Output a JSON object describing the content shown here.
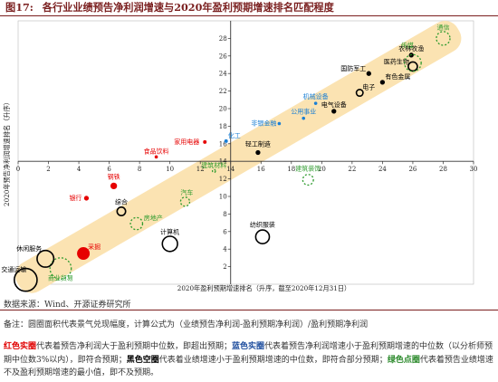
{
  "figure": {
    "title_prefix": "图17:",
    "title": "各行业业绩预告净利润增速与2020年盈利预期增速排名匹配程度"
  },
  "chart_data": {
    "type": "scatter",
    "xlabel": "2020年盈利预期增速排名（升序，截至2020年12月31日）",
    "ylabel": "2020年预告净利润增速排名（升序）",
    "xlim": [
      0,
      30
    ],
    "ylim": [
      0,
      30
    ],
    "x_ticks": [
      0,
      2,
      4,
      6,
      8,
      10,
      12,
      14,
      16,
      18,
      20,
      22,
      24,
      26,
      28,
      30
    ],
    "y_ticks": [
      2,
      4,
      6,
      8,
      10,
      12,
      14,
      16,
      18,
      20,
      22,
      24,
      26,
      28
    ],
    "axis_origin": [
      14,
      14
    ],
    "grid": false,
    "band": {
      "from": [
        0,
        0
      ],
      "to": [
        29,
        29
      ],
      "color": "#fbe3b2"
    },
    "colors": {
      "red": "#e60000",
      "blue": "#1a7fd4",
      "black": "#000000",
      "green": "#2e9b2e"
    },
    "points": [
      {
        "label": "交通运输",
        "x": 0.5,
        "y": 0.5,
        "r": 0.75,
        "kind": "black_hollow"
      },
      {
        "label": "商业贸易",
        "x": 2.8,
        "y": 1.8,
        "r": 0.7,
        "kind": "green_dashed"
      },
      {
        "label": "休闲服务",
        "x": 1.8,
        "y": 2.9,
        "r": 0.55,
        "kind": "black_hollow"
      },
      {
        "label": "采掘",
        "x": 4.3,
        "y": 3.5,
        "r": 0.4,
        "kind": "red_solid"
      },
      {
        "label": "计算机",
        "x": 10,
        "y": 4.6,
        "r": 0.5,
        "kind": "black_hollow"
      },
      {
        "label": "纺织服装",
        "x": 16.1,
        "y": 5.4,
        "r": 0.45,
        "kind": "black_hollow"
      },
      {
        "label": "房地产",
        "x": 7.8,
        "y": 6.9,
        "r": 0.4,
        "kind": "green_dashed"
      },
      {
        "label": "综合",
        "x": 6.8,
        "y": 8.3,
        "r": 0.28,
        "kind": "black_hollow"
      },
      {
        "label": "银行",
        "x": 4.5,
        "y": 9.8,
        "r": 0.14,
        "kind": "red_solid"
      },
      {
        "label": "钢铁",
        "x": 6.3,
        "y": 11.2,
        "r": 0.2,
        "kind": "red_solid"
      },
      {
        "label": "汽车",
        "x": 11,
        "y": 9.4,
        "r": 0.3,
        "kind": "green_dashed"
      },
      {
        "label": "建筑装饰",
        "x": 19.1,
        "y": 11.9,
        "r": 0.35,
        "kind": "green_dashed"
      },
      {
        "label": "食品饮料",
        "x": 9.1,
        "y": 14.5,
        "r": 0.08,
        "kind": "red_solid"
      },
      {
        "label": "建筑材料",
        "x": 12.9,
        "y": 12.9,
        "r": 0.1,
        "kind": "green_dashed"
      },
      {
        "label": "家用电器",
        "x": 12.3,
        "y": 16.2,
        "r": 0.1,
        "kind": "red_solid"
      },
      {
        "label": "化工",
        "x": 13.7,
        "y": 16.3,
        "r": 0.1,
        "kind": "blue_solid"
      },
      {
        "label": "轻工制造",
        "x": 15.8,
        "y": 15.0,
        "r": 0.14,
        "kind": "black_solid"
      },
      {
        "label": "非银金融",
        "x": 17.2,
        "y": 18.3,
        "r": 0.08,
        "kind": "blue_solid"
      },
      {
        "label": "公用事业",
        "x": 18.8,
        "y": 18.9,
        "r": 0.08,
        "kind": "blue_solid"
      },
      {
        "label": "机械设备",
        "x": 19.6,
        "y": 20.6,
        "r": 0.08,
        "kind": "blue_solid"
      },
      {
        "label": "电气设备",
        "x": 20.8,
        "y": 19.7,
        "r": 0.14,
        "kind": "black_solid"
      },
      {
        "label": "国防军工",
        "x": 23.1,
        "y": 24.0,
        "r": 0.14,
        "kind": "black_solid"
      },
      {
        "label": "电子",
        "x": 22.5,
        "y": 21.8,
        "r": 0.22,
        "kind": "black_hollow"
      },
      {
        "label": "有色金属",
        "x": 24.0,
        "y": 23.0,
        "r": 0.14,
        "kind": "black_solid"
      },
      {
        "label": "医药生物",
        "x": 26.0,
        "y": 24.8,
        "r": 0.3,
        "kind": "black_hollow"
      },
      {
        "label": "农林牧渔",
        "x": 25.9,
        "y": 26.1,
        "r": 0.14,
        "kind": "black_solid"
      },
      {
        "label": "传媒",
        "x": 26.0,
        "y": 25.2,
        "r": 0.55,
        "kind": "green_dashed"
      },
      {
        "label": "通信",
        "x": 28.0,
        "y": 28.0,
        "r": 0.45,
        "kind": "green_dashed"
      }
    ]
  },
  "footer": {
    "source": "数据来源：Wind、开源证券研究所",
    "note": "备注：圆圈面积代表景气兑现幅度，计算公式为（业绩预告净利润-盈利预期净利润）/盈利预期净利润",
    "legend_red_title": "红色实圈",
    "legend_red_text": "代表着预告净利润大于盈利预期中位数，即超出预期；",
    "legend_blue_title": "蓝色实圈",
    "legend_blue_text": "代表着预告净利润增速小于盈利预期增速的中位数（以分析师预期中位数3%以内），即符合预期；",
    "legend_black_title": "黑色空圈",
    "legend_black_text": "代表着业绩增速小于盈利预期增速的中位数，即符合部分预期；",
    "legend_green_title": "绿色点圈",
    "legend_green_text": "代表着预告业绩增速不及盈利预期增速的最小值，即不及预期。"
  }
}
